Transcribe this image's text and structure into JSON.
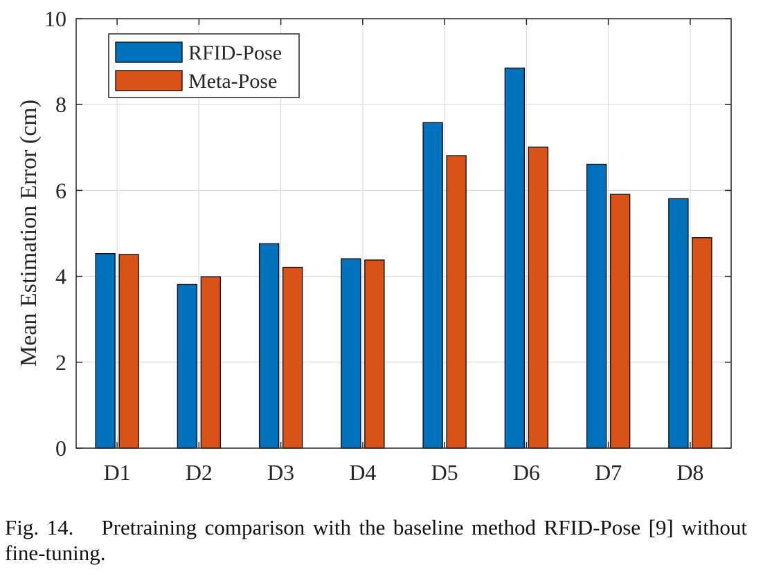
{
  "chart_data": {
    "type": "bar",
    "ylabel": "Mean Estimation Error (cm)",
    "categories": [
      "D1",
      "D2",
      "D3",
      "D4",
      "D5",
      "D6",
      "D7",
      "D8"
    ],
    "series": [
      {
        "name": "RFID-Pose",
        "color": "#0072BD",
        "values": [
          4.53,
          3.81,
          4.76,
          4.41,
          7.58,
          8.85,
          6.61,
          5.81
        ]
      },
      {
        "name": "Meta-Pose",
        "color": "#D95319",
        "values": [
          4.51,
          3.99,
          4.21,
          4.38,
          6.81,
          7.01,
          5.91,
          4.9
        ]
      }
    ],
    "ylim": [
      0,
      10
    ],
    "yticks": [
      0,
      2,
      4,
      6,
      8,
      10
    ],
    "grid": true,
    "legend_position": "top-left"
  },
  "caption": {
    "label": "Fig. 14.",
    "text": "Pretraining comparison with the baseline method RFID-Pose [9] without fine-tuning."
  }
}
